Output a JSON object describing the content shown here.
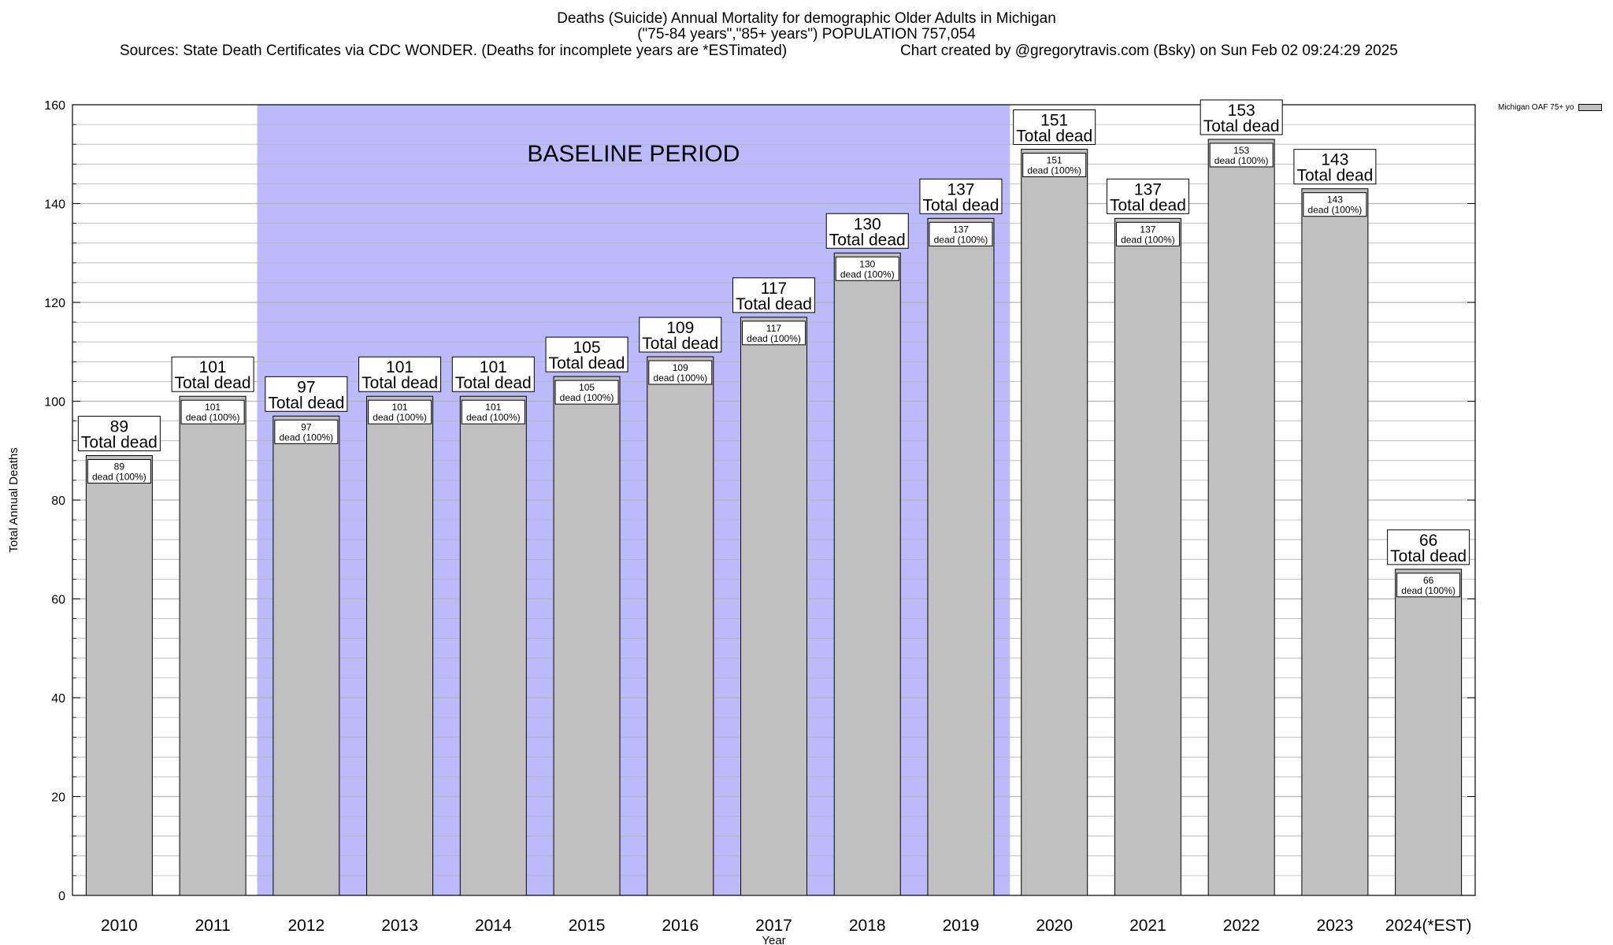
{
  "header": {
    "title_line1": "Deaths (Suicide) Annual Mortality for demographic Older Adults in Michigan",
    "title_line2": "(\"75-84 years\",\"85+ years\") POPULATION 757,054",
    "sources": "Sources: State Death Certificates via CDC WONDER. (Deaths for incomplete years are *ESTimated)",
    "credit": "Chart created by @gregorytravis.com (Bsky) on Sun Feb 02 09:24:29 2025"
  },
  "legend": {
    "label": "Michigan OAF 75+ yo",
    "color": "#c0c0c0"
  },
  "chart_data": {
    "type": "bar",
    "xlabel": "Year",
    "ylabel": "Total Annual Deaths",
    "ylim": [
      0,
      160
    ],
    "yticks": [
      0,
      20,
      40,
      60,
      80,
      100,
      120,
      140,
      160
    ],
    "grid": true,
    "categories": [
      "2010",
      "2011",
      "2012",
      "2013",
      "2014",
      "2015",
      "2016",
      "2017",
      "2018",
      "2019",
      "2020",
      "2021",
      "2022",
      "2023",
      "2024(*EST)"
    ],
    "series": [
      {
        "name": "Michigan OAF 75+ yo",
        "values": [
          89,
          101,
          97,
          101,
          101,
          105,
          109,
          117,
          130,
          137,
          151,
          137,
          153,
          143,
          66
        ]
      }
    ],
    "total_label_suffix": "Total dead",
    "inner_label_suffix": "dead (100%)",
    "baseline": {
      "label": "BASELINE PERIOD",
      "from": "2012",
      "to": "2019"
    },
    "colors": {
      "bar": "#c0c0c0",
      "baseline": "#bbbbfb",
      "grid": "#b4b4b4"
    }
  }
}
